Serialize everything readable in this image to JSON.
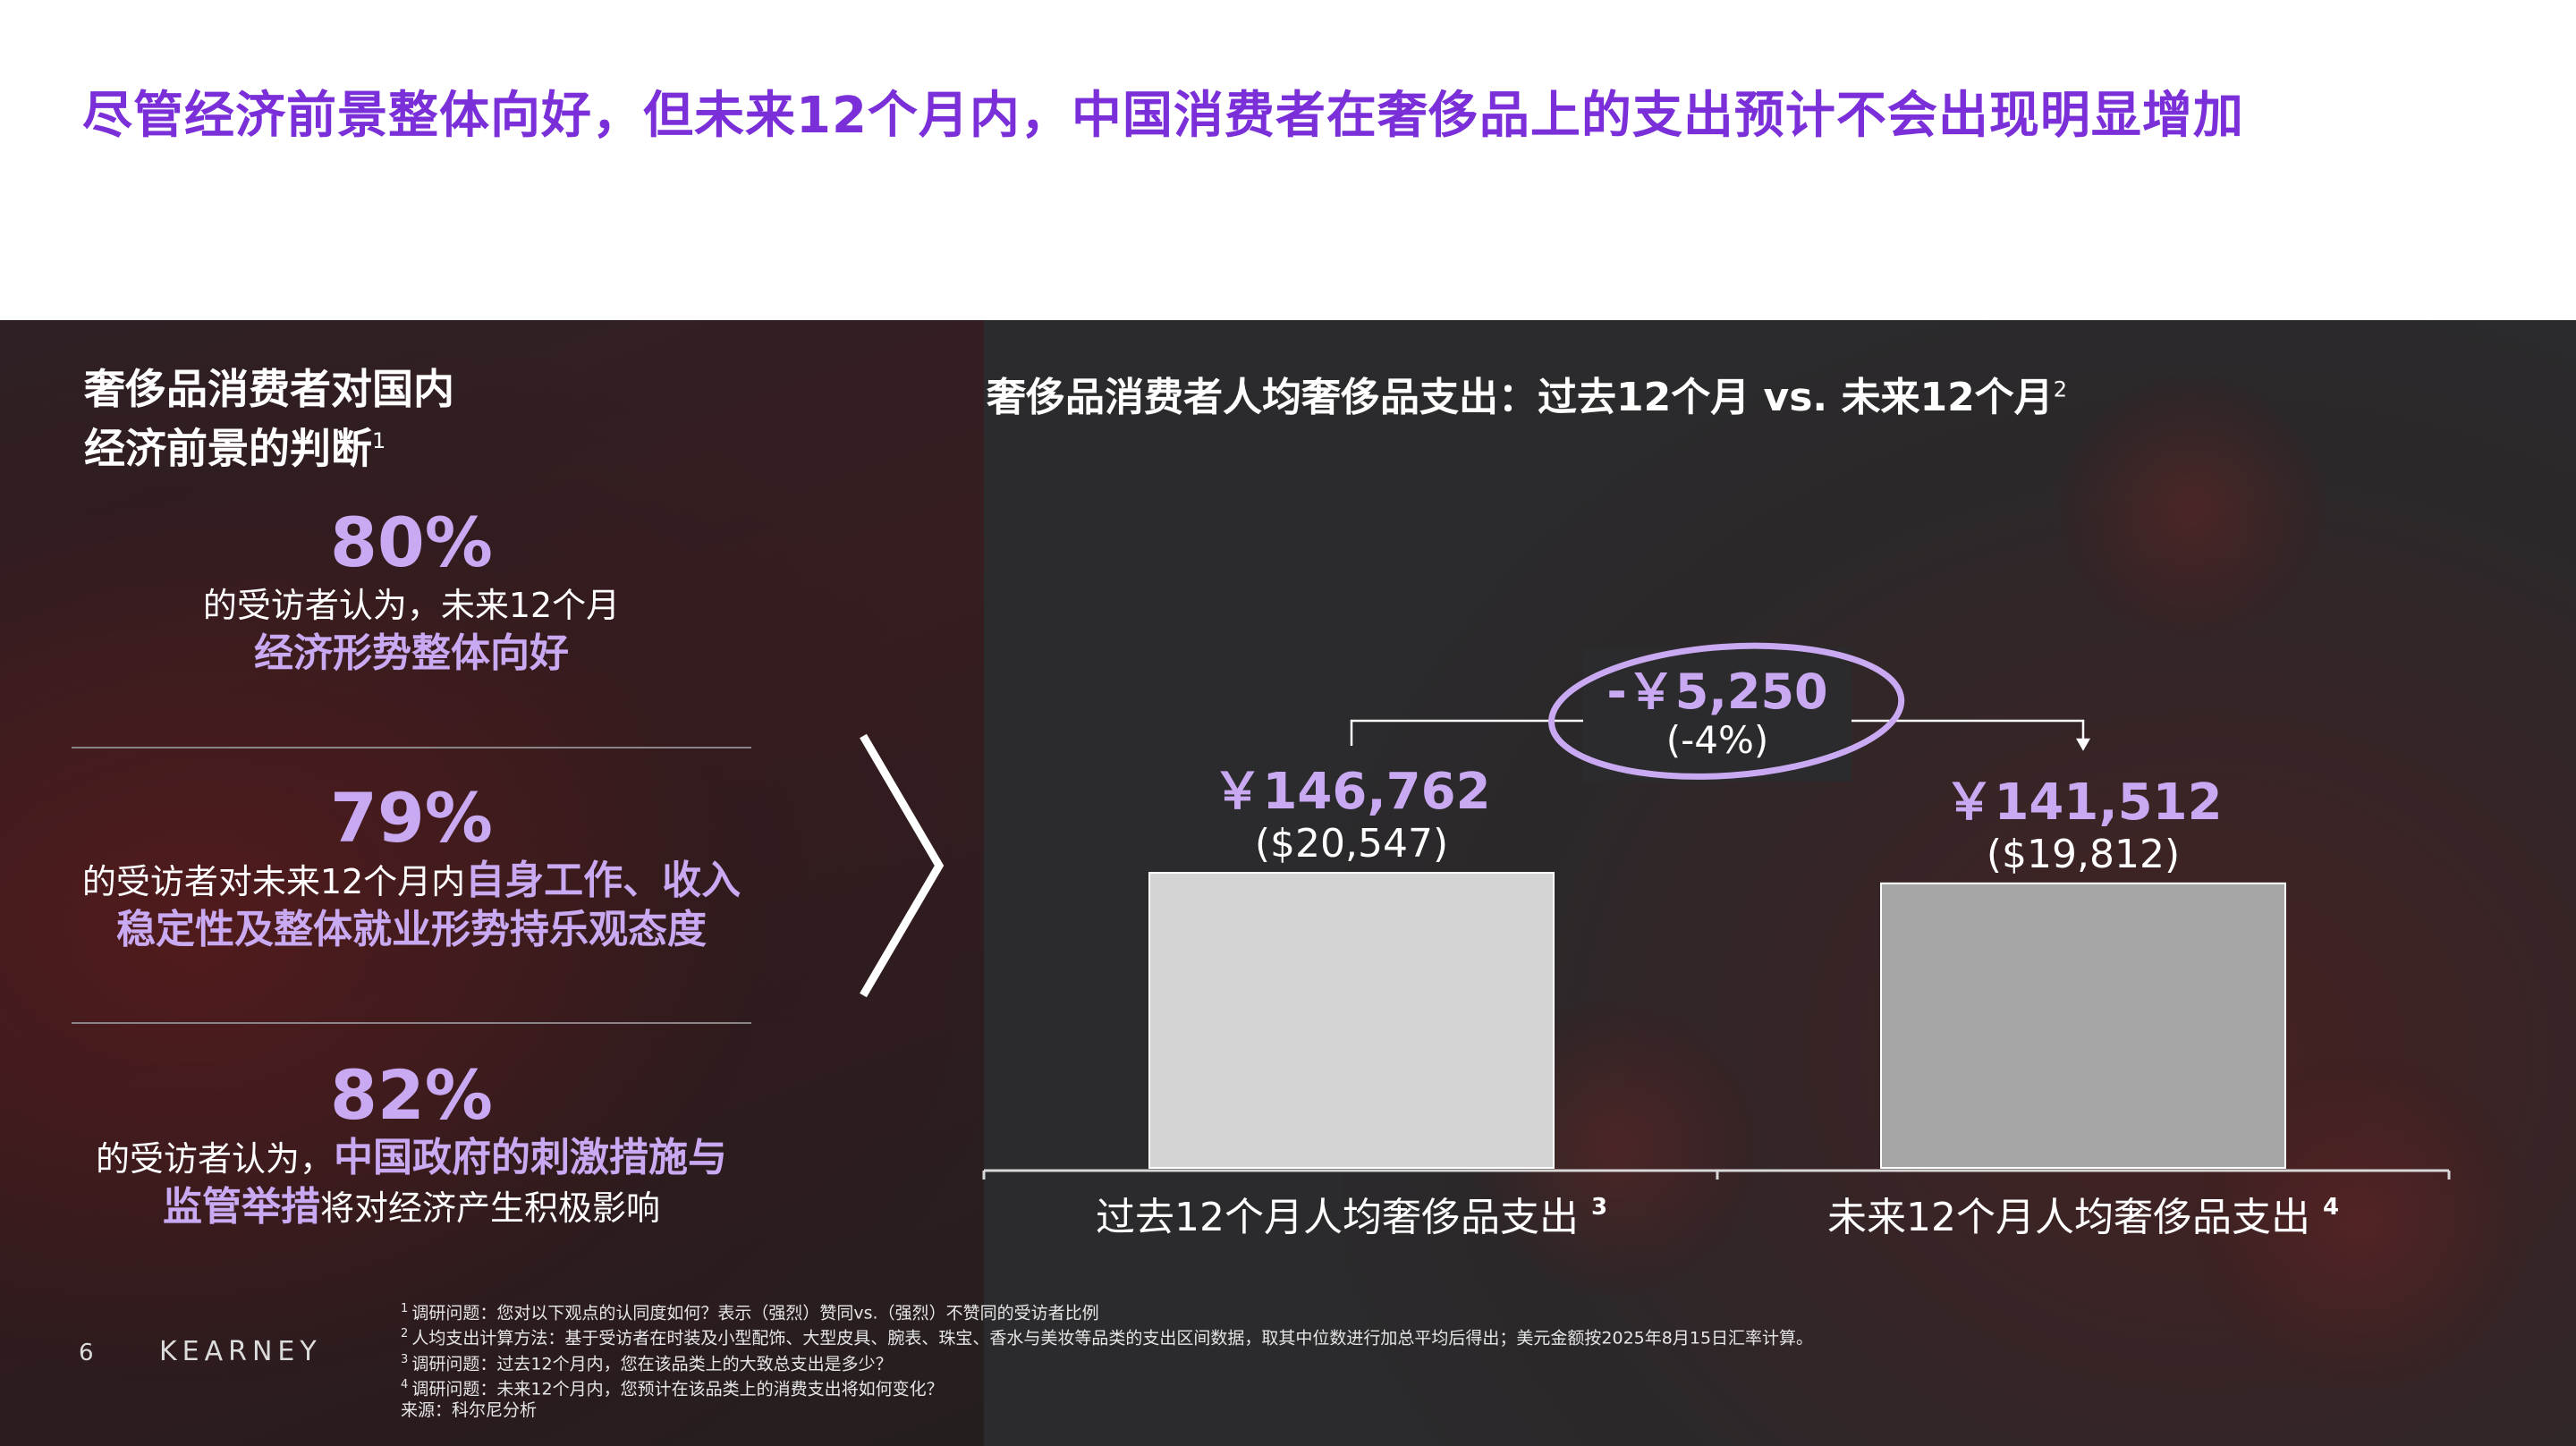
{
  "page": {
    "title": "尽管经济前景整体向好，但未来12个月内，中国消费者在奢侈品上的支出预计不会出现明显增加",
    "page_number": "6",
    "logo": "KEARNEY"
  },
  "left": {
    "heading_line1": "奢侈品消费者对国内",
    "heading_line2": "经济前景的判断",
    "heading_sup": "1",
    "stats": [
      {
        "pct": "80%",
        "line1": "的受访者认为，未来12个月",
        "line2_highlight": "经济形势整体向好"
      },
      {
        "pct": "79%",
        "line1_prefix": "的受访者对未来12个月内",
        "line1_highlight": "自身工作、收入",
        "line2_highlight": "稳定性及整体就业形势持乐观态度"
      },
      {
        "pct": "82%",
        "line1_prefix": "的受访者认为，",
        "line1_highlight": "中国政府的刺激措施与",
        "line2_highlight": "监管举措",
        "line2_suffix": "将对经济产生积极影响"
      }
    ]
  },
  "chart_data": {
    "type": "bar",
    "title": "奢侈品消费者人均奢侈品支出：过去12个月 vs. 未来12个月",
    "title_sup": "2",
    "categories": [
      "过去12个月人均奢侈品支出",
      "未来12个月人均奢侈品支出"
    ],
    "category_sups": [
      "3",
      "4"
    ],
    "values": [
      146762,
      141512
    ],
    "value_labels": [
      "￥146,762",
      "￥141,512"
    ],
    "usd_labels": [
      "($20,547)",
      "($19,812)"
    ],
    "bar_colors": [
      "#d4d4d4",
      "#a6a6a6"
    ],
    "ylim": [
      0,
      160000
    ],
    "annotation": {
      "diff": "-￥5,250",
      "pct": "(-4%)"
    }
  },
  "footnotes": [
    {
      "num": "1",
      "text": "调研问题：您对以下观点的认同度如何？表示（强烈）赞同vs.（强烈）不赞同的受访者比例"
    },
    {
      "num": "2",
      "text": "人均支出计算方法：基于受访者在时装及小型配饰、大型皮具、腕表、珠宝、香水与美妆等品类的支出区间数据，取其中位数进行加总平均后得出；美元金额按2025年8月15日汇率计算。"
    },
    {
      "num": "3",
      "text": "调研问题：过去12个月内，您在该品类上的大致总支出是多少？"
    },
    {
      "num": "4",
      "text": "调研问题：未来12个月内，您预计在该品类上的消费支出将如何变化？"
    },
    {
      "num": "",
      "text": "来源：科尔尼分析"
    }
  ],
  "colors": {
    "accent": "#7a2fd8",
    "highlight": "#c9a9f2",
    "panel": "#2b2a2c"
  }
}
